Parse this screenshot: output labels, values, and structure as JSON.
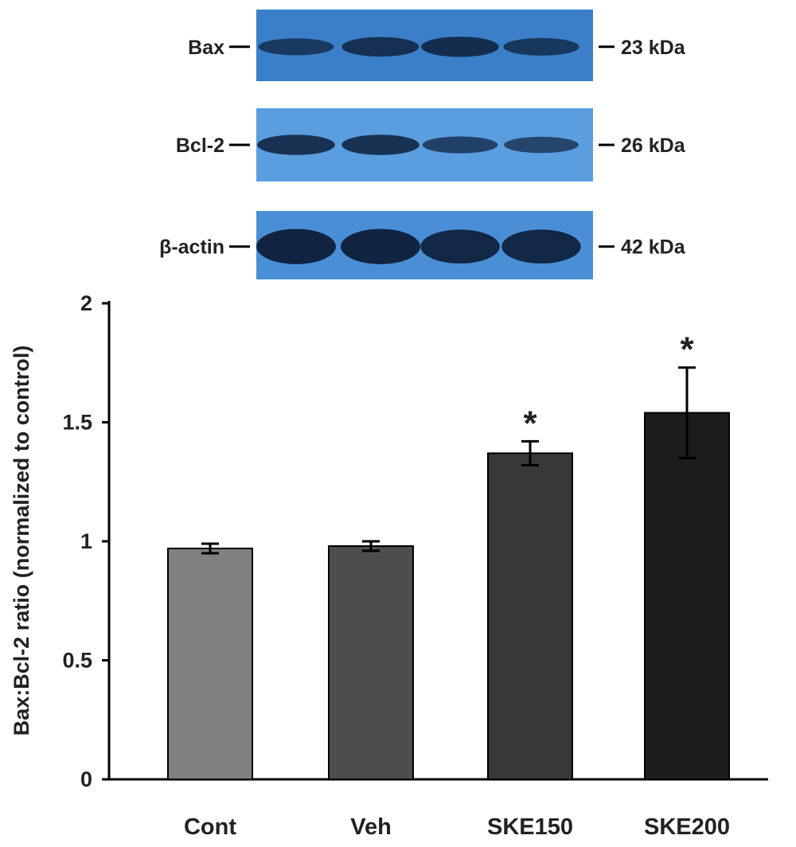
{
  "blots": {
    "panels": [
      {
        "name": "bax",
        "protein": "Bax",
        "marker": "23 kDa",
        "bg": "#3a7fc8",
        "bands": [
          0.55,
          0.75,
          0.8,
          0.6
        ]
      },
      {
        "name": "bcl2",
        "protein": "Bcl-2",
        "marker": "26 kDa",
        "bg": "#5a9ee0",
        "bands": [
          0.8,
          0.8,
          0.55,
          0.5
        ]
      },
      {
        "name": "actin",
        "protein": "β-actin",
        "marker": "42 kDa",
        "bg": "#4a8fd6",
        "bands": [
          1.0,
          1.0,
          0.95,
          0.95
        ]
      }
    ],
    "band_color": "#0d1f3a"
  },
  "chart_data": {
    "type": "bar",
    "categories": [
      "Cont",
      "Veh",
      "SKE150",
      "SKE200"
    ],
    "values": [
      0.97,
      0.98,
      1.37,
      1.54
    ],
    "errors": [
      0.02,
      0.02,
      0.05,
      0.19
    ],
    "significance": [
      "",
      "",
      "*",
      "*"
    ],
    "colors": [
      "#808080",
      "#4d4d4d",
      "#383838",
      "#1c1c1c"
    ],
    "ylabel": "Bax:Bcl-2 ratio (normalized to control)",
    "xlabel": "",
    "ylim": [
      0,
      2
    ],
    "yticks": [
      "0",
      "0.5",
      "1",
      "1.5",
      "2"
    ],
    "grid": false
  }
}
